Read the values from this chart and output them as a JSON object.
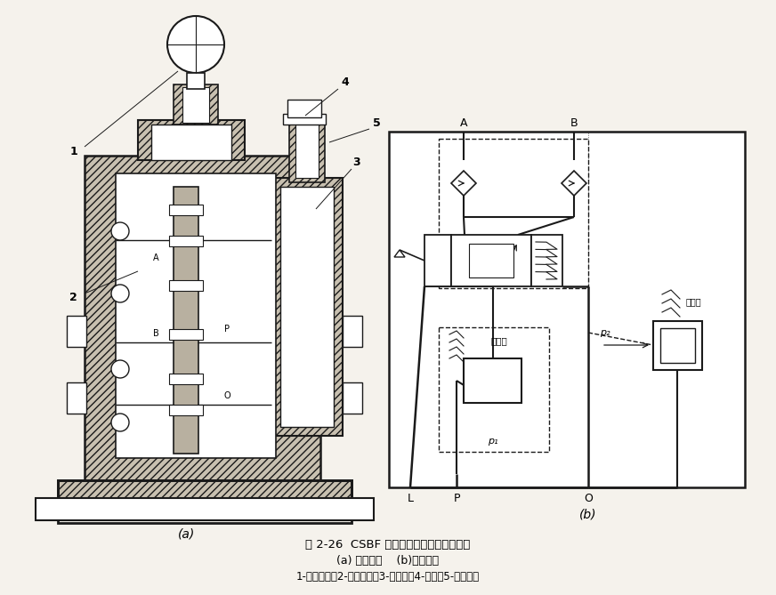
{
  "title_main": "图 2-26  CSBF 手动比例复合阀结构与符号",
  "title_sub": "(a) 工作原理    (b)机能符号",
  "title_parts": "1-操纵手柄；2-主阀阀芯；3-分流阀；4-弹簧；5-调节螺钉",
  "label_a": "(a)",
  "label_b": "(b)",
  "bg_color": "#f5f2ec",
  "line_color": "#1a1a1a",
  "hatch_color": "#c8c0b0",
  "white": "#ffffff"
}
